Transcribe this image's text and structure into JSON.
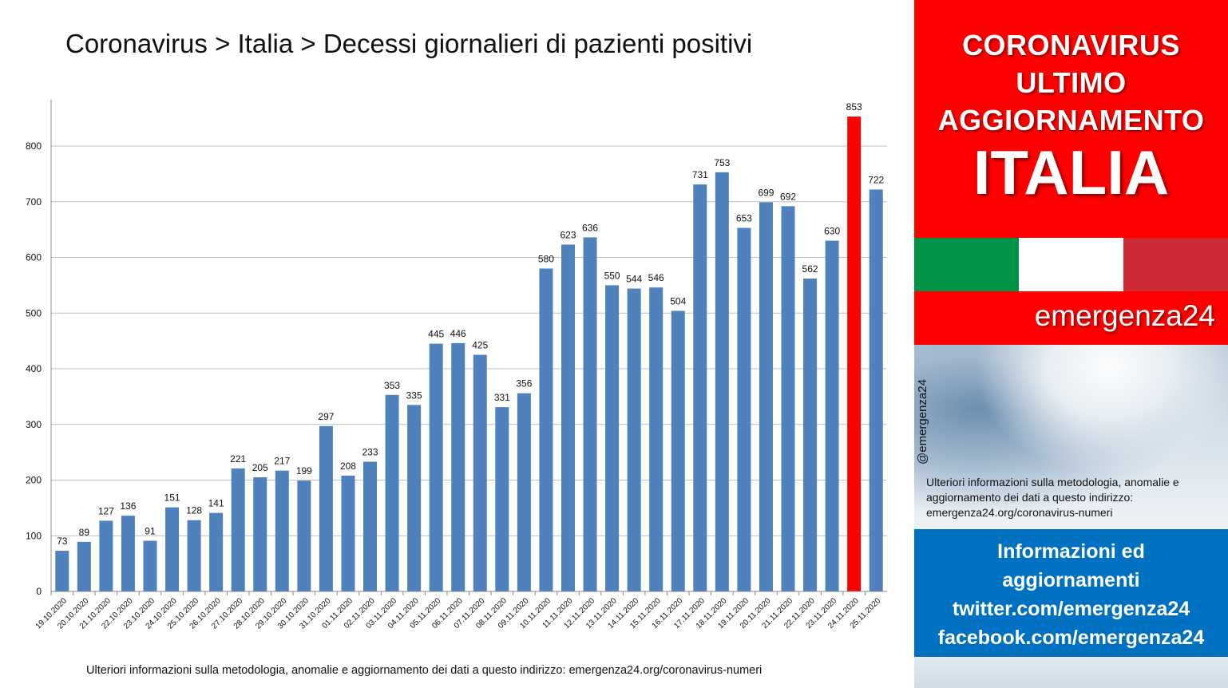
{
  "title": "Coronavirus > Italia > Decessi giornalieri di pazienti positivi",
  "footnote": "Ulteriori informazioni sulla metodologia, anomalie e aggiornamento dei dati a questo indirizzo: emergenza24.org/coronavirus-numeri",
  "chart_data": {
    "type": "bar",
    "title": "Coronavirus > Italia > Decessi giornalieri di pazienti positivi",
    "xlabel": "",
    "ylabel": "",
    "ylim": [
      0,
      880
    ],
    "yticks": [
      0,
      100,
      200,
      300,
      400,
      500,
      600,
      700,
      800
    ],
    "grid": true,
    "legend": "none",
    "categories": [
      "19.10.2020",
      "20.10.2020",
      "21.10.2020",
      "22.10.2020",
      "23.10.2020",
      "24.10.2020",
      "25.10.2020",
      "26.10.2020",
      "27.10.2020",
      "28.10.2020",
      "29.10.2020",
      "30.10.2020",
      "31.10.2020",
      "01.11.2020",
      "02.11.2020",
      "03.11.2020",
      "04.11.2020",
      "05.11.2020",
      "06.11.2020",
      "07.11.2020",
      "08.11.2020",
      "09.11.2020",
      "10.11.2020",
      "11.11.2020",
      "12.11.2020",
      "13.11.2020",
      "14.11.2020",
      "15.11.2020",
      "16.11.2020",
      "17.11.2020",
      "18.11.2020",
      "19.11.2020",
      "20.11.2020",
      "21.11.2020",
      "22.11.2020",
      "23.11.2020",
      "24.11.2020",
      "25.11.2020"
    ],
    "values": [
      73,
      89,
      127,
      136,
      91,
      151,
      128,
      141,
      221,
      205,
      217,
      199,
      297,
      208,
      233,
      353,
      335,
      445,
      446,
      425,
      331,
      356,
      580,
      623,
      636,
      550,
      544,
      546,
      504,
      731,
      753,
      653,
      699,
      692,
      562,
      630,
      853,
      722
    ],
    "highlight_index": 36,
    "colors": {
      "bar": "#4f81bd",
      "highlight": "#ff0000",
      "grid": "#bfbfbf"
    }
  },
  "panel": {
    "headline_lines": [
      "CORONAVIRUS",
      "ULTIMO",
      "AGGIORNAMENTO"
    ],
    "country": "ITALIA",
    "flag_colors": [
      "#009246",
      "#ffffff",
      "#ce2b37"
    ],
    "brand": "emergenza24",
    "handle": "@emergenza24",
    "note": "Ulteriori informazioni sulla metodologia, anomalie e aggiornamento dei dati a questo indirizzo: emergenza24.org/coronavirus-numeri",
    "info_lines": [
      "Informazioni ed",
      "aggiornamenti",
      "twitter.com/emergenza24",
      "facebook.com/emergenza24"
    ]
  }
}
